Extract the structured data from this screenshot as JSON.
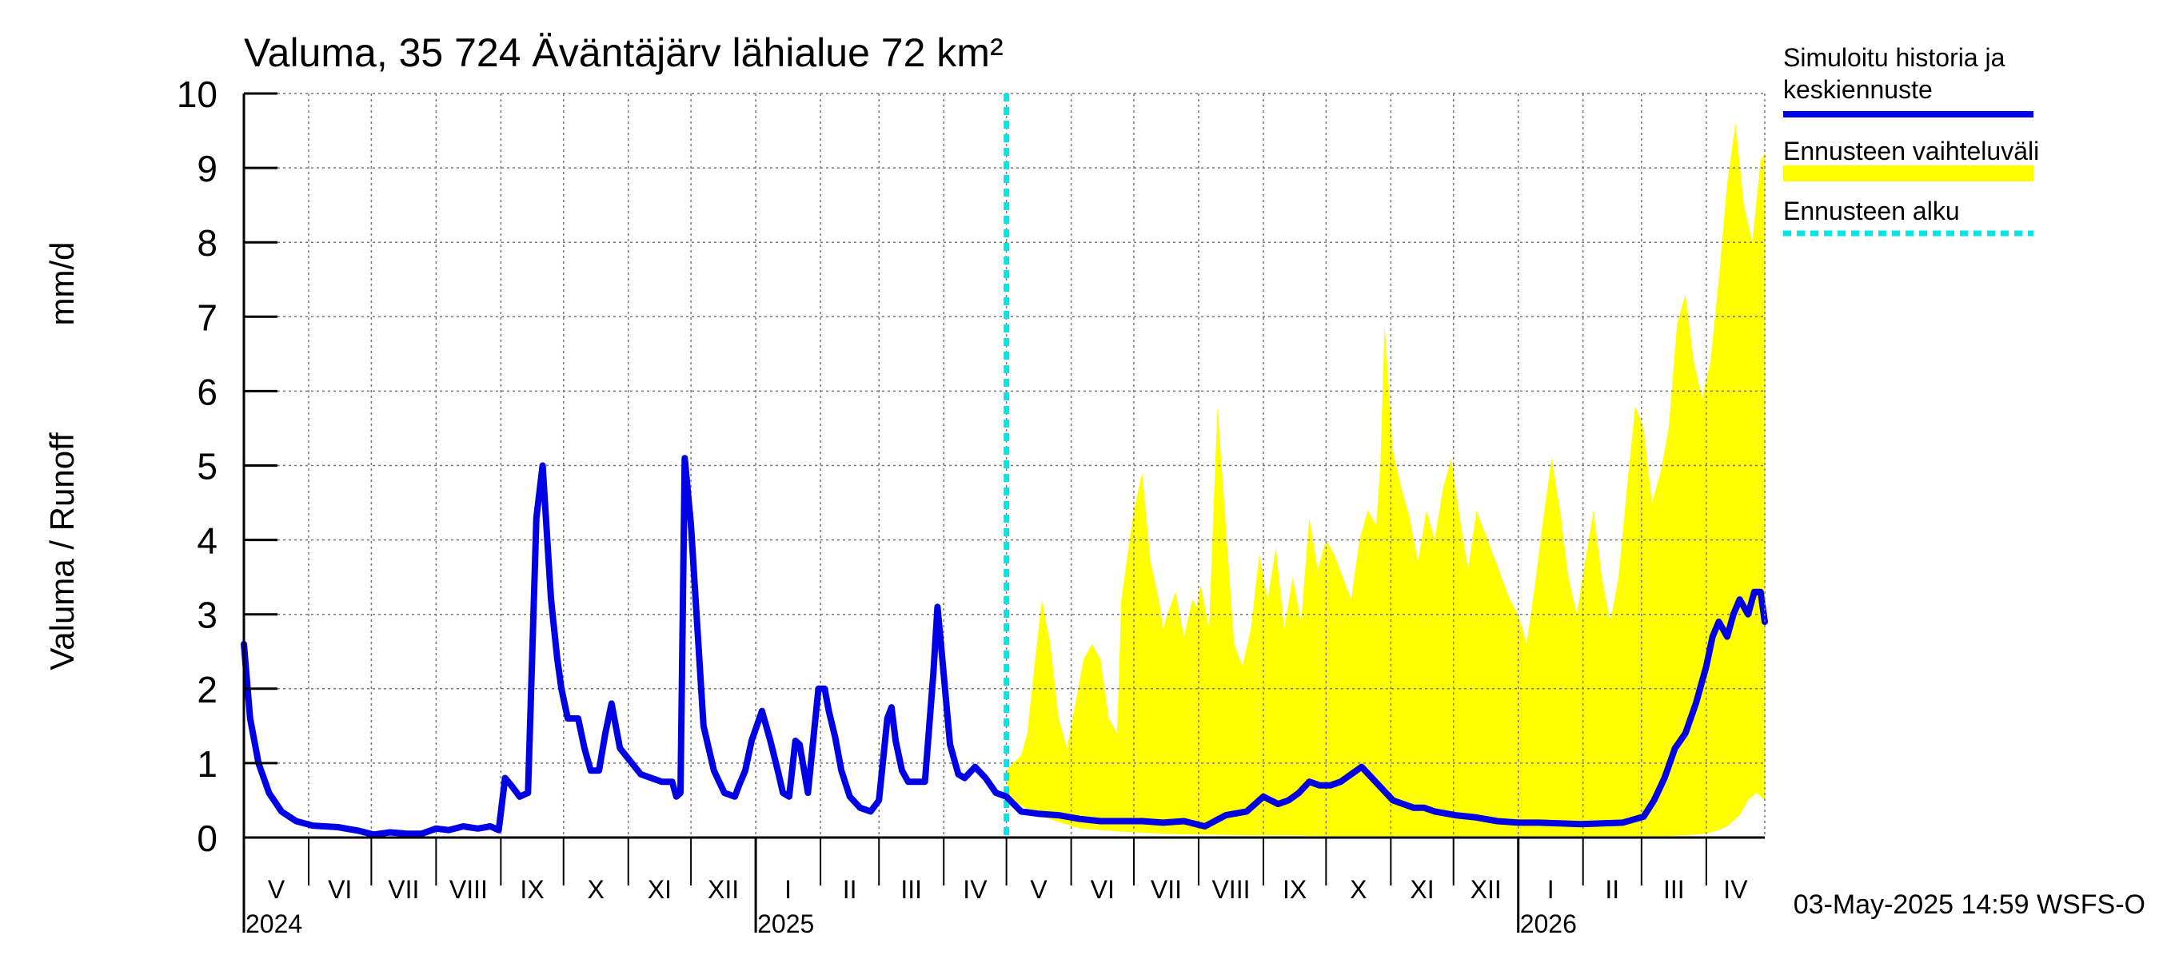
{
  "chart_data": {
    "type": "area",
    "title": "Valuma, 35 724 Äväntäjärv lähialue 72 km²",
    "ylabel_fi": "Valuma / Runoff",
    "ylabel_unit": "mm/d",
    "ylim": [
      0,
      10
    ],
    "yticks": [
      "0",
      "1",
      "2",
      "3",
      "4",
      "5",
      "6",
      "7",
      "8",
      "9",
      "10"
    ],
    "x_range_days": [
      0,
      728
    ],
    "month_labels": [
      "V",
      "VI",
      "VII",
      "VIII",
      "IX",
      "X",
      "XI",
      "XII",
      "I",
      "II",
      "III",
      "IV",
      "V",
      "VI",
      "VII",
      "VIII",
      "IX",
      "X",
      "XI",
      "XII",
      "I",
      "II",
      "III",
      "IV"
    ],
    "month_starts": [
      0,
      31,
      61,
      92,
      123,
      153,
      184,
      214,
      245,
      276,
      304,
      335,
      365,
      396,
      426,
      457,
      488,
      518,
      549,
      579,
      610,
      641,
      669,
      700,
      728
    ],
    "year_labels": [
      {
        "label": "2024",
        "day": 0
      },
      {
        "label": "2025",
        "day": 245
      },
      {
        "label": "2026",
        "day": 610
      }
    ],
    "year_boundaries": [
      245,
      610
    ],
    "forecast_start_day": 365,
    "timestamp": "03-May-2025 14:59 WSFS-O",
    "colors": {
      "history": "#0000e6",
      "band": "#ffff00",
      "forecast_start": "#00e5e5",
      "grid": "#777777"
    },
    "legend": [
      {
        "label_lines": [
          "Simuloitu historia ja",
          "keskiennuste"
        ],
        "kind": "history"
      },
      {
        "label_lines": [
          "Ennusteen vaihteluväli"
        ],
        "kind": "band"
      },
      {
        "label_lines": [
          "Ennusteen alku"
        ],
        "kind": "forecast_start"
      }
    ],
    "series": [
      {
        "name": "Simuloitu historia ja keskiennuste",
        "x": [
          0,
          3,
          7,
          12,
          18,
          25,
          33,
          45,
          55,
          62,
          70,
          78,
          85,
          92,
          98,
          105,
          112,
          118,
          122,
          125,
          128,
          132,
          136,
          140,
          143,
          147,
          150,
          152,
          155,
          160,
          163,
          166,
          170,
          173,
          176,
          180,
          190,
          200,
          205,
          207,
          209,
          211,
          214,
          220,
          225,
          230,
          235,
          237,
          240,
          243,
          248,
          252,
          256,
          258,
          261,
          264,
          266,
          270,
          275,
          278,
          280,
          283,
          286,
          290,
          295,
          300,
          304,
          308,
          310,
          312,
          315,
          318,
          322,
          326,
          330,
          332,
          334,
          338,
          342,
          345,
          350,
          355,
          360,
          365,
          372,
          380,
          390,
          400,
          410,
          420,
          430,
          440,
          450,
          460,
          470,
          480,
          488,
          495,
          500,
          505,
          510,
          515,
          520,
          525,
          530,
          535,
          540,
          545,
          550,
          555,
          560,
          565,
          570,
          580,
          590,
          600,
          610,
          620,
          640,
          660,
          670,
          675,
          680,
          685,
          690,
          695,
          700,
          703,
          706,
          710,
          713,
          716,
          720,
          723,
          726,
          728
        ],
        "y": [
          2.6,
          1.6,
          1.0,
          0.6,
          0.35,
          0.22,
          0.16,
          0.14,
          0.09,
          0.04,
          0.07,
          0.05,
          0.05,
          0.12,
          0.1,
          0.15,
          0.12,
          0.15,
          0.1,
          0.8,
          0.7,
          0.55,
          0.6,
          4.3,
          5.0,
          3.2,
          2.4,
          2.0,
          1.6,
          1.6,
          1.2,
          0.9,
          0.9,
          1.4,
          1.8,
          1.2,
          0.85,
          0.75,
          0.75,
          0.55,
          0.6,
          5.1,
          4.2,
          1.5,
          0.9,
          0.6,
          0.55,
          0.7,
          0.9,
          1.3,
          1.7,
          1.3,
          0.85,
          0.6,
          0.55,
          1.3,
          1.25,
          0.6,
          2.0,
          2.0,
          1.7,
          1.35,
          0.9,
          0.55,
          0.4,
          0.35,
          0.5,
          1.6,
          1.75,
          1.3,
          0.9,
          0.75,
          0.75,
          0.75,
          2.2,
          3.1,
          2.5,
          1.25,
          0.85,
          0.8,
          0.95,
          0.8,
          0.6,
          0.55,
          0.35,
          0.32,
          0.3,
          0.25,
          0.22,
          0.22,
          0.22,
          0.2,
          0.22,
          0.15,
          0.3,
          0.35,
          0.55,
          0.45,
          0.5,
          0.6,
          0.75,
          0.7,
          0.7,
          0.75,
          0.85,
          0.95,
          0.8,
          0.65,
          0.5,
          0.45,
          0.4,
          0.4,
          0.35,
          0.3,
          0.27,
          0.22,
          0.2,
          0.2,
          0.18,
          0.2,
          0.28,
          0.5,
          0.8,
          1.2,
          1.4,
          1.8,
          2.3,
          2.7,
          2.9,
          2.7,
          3.0,
          3.2,
          3.0,
          3.3,
          3.3,
          2.9
        ]
      },
      {
        "name": "Ennusteen vaihteluväli (yläraja)",
        "x": [
          365,
          368,
          372,
          375,
          378,
          382,
          386,
          390,
          394,
          398,
          402,
          406,
          410,
          414,
          418,
          420,
          422,
          426,
          430,
          434,
          438,
          440,
          442,
          446,
          450,
          454,
          456,
          458,
          462,
          466,
          470,
          474,
          478,
          482,
          486,
          490,
          494,
          498,
          502,
          506,
          510,
          514,
          518,
          522,
          526,
          530,
          534,
          538,
          542,
          544,
          546,
          550,
          554,
          558,
          562,
          566,
          570,
          574,
          578,
          582,
          586,
          590,
          594,
          598,
          602,
          606,
          610,
          614,
          618,
          622,
          626,
          630,
          634,
          638,
          642,
          646,
          650,
          654,
          658,
          662,
          666,
          670,
          674,
          678,
          682,
          686,
          690,
          694,
          698,
          702,
          706,
          710,
          714,
          718,
          722,
          726,
          728
        ],
        "y": [
          0.9,
          1.0,
          1.1,
          1.4,
          2.2,
          3.2,
          2.6,
          1.6,
          1.2,
          1.8,
          2.4,
          2.6,
          2.4,
          1.6,
          1.4,
          3.2,
          3.6,
          4.4,
          4.9,
          3.7,
          3.2,
          2.8,
          3.0,
          3.3,
          2.7,
          3.2,
          3.1,
          3.4,
          2.8,
          5.8,
          4.2,
          2.6,
          2.3,
          2.8,
          3.8,
          3.2,
          3.9,
          2.8,
          3.5,
          2.9,
          4.3,
          3.6,
          4.0,
          3.8,
          3.5,
          3.2,
          4.0,
          4.4,
          4.2,
          5.0,
          6.9,
          5.2,
          4.7,
          4.3,
          3.7,
          4.4,
          4.0,
          4.7,
          5.1,
          4.3,
          3.6,
          4.4,
          4.1,
          3.8,
          3.5,
          3.2,
          3.0,
          2.6,
          3.4,
          4.3,
          5.1,
          4.4,
          3.5,
          3.0,
          3.7,
          4.4,
          3.5,
          2.9,
          3.5,
          4.7,
          5.8,
          5.5,
          4.5,
          4.9,
          5.5,
          6.9,
          7.3,
          6.4,
          5.9,
          6.4,
          7.5,
          8.8,
          9.6,
          8.5,
          8.0,
          9.1,
          9.2
        ]
      },
      {
        "name": "Ennusteen vaihteluväli (alaraja)",
        "x": [
          365,
          380,
          400,
          420,
          440,
          460,
          480,
          500,
          520,
          540,
          560,
          580,
          600,
          620,
          640,
          660,
          670,
          680,
          690,
          700,
          706,
          710,
          716,
          720,
          724,
          728
        ],
        "y": [
          0.55,
          0.3,
          0.12,
          0.08,
          0.05,
          0.04,
          0.03,
          0.03,
          0.02,
          0.02,
          0.02,
          0.02,
          0.02,
          0.02,
          0.02,
          0.02,
          0.02,
          0.02,
          0.03,
          0.05,
          0.1,
          0.15,
          0.3,
          0.5,
          0.6,
          0.5
        ]
      }
    ]
  }
}
